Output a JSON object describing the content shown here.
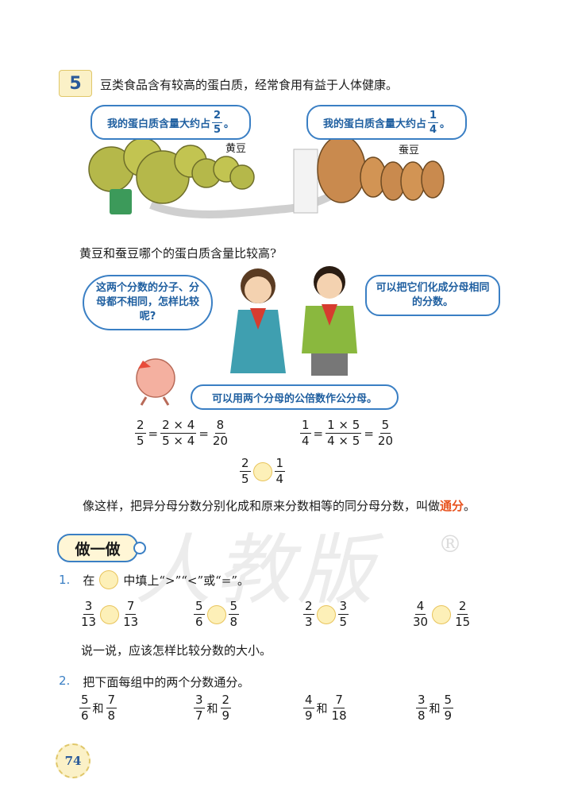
{
  "example": {
    "number": "5",
    "intro": "豆类食品含有较高的蛋白质，经常食用有益于人体健康。",
    "soy_bubble": {
      "text": "我的蛋白质含量大约占",
      "n": "2",
      "d": "5",
      "end": "。"
    },
    "broad_bubble": {
      "text": "我的蛋白质含量大约占",
      "n": "1",
      "d": "4",
      "end": "。"
    },
    "soy_label": "黄豆",
    "broad_label": "蚕豆",
    "question": "黄豆和蚕豆哪个的蛋白质含量比较高?",
    "girl_bubble": "这两个分数的分子、分母都不相同，怎样比较呢?",
    "boy_bubble": "可以把它们化成分母相同的分数。",
    "bean_bubble": "可以用两个分母的公倍数作公分母。",
    "eq1": {
      "a_n": "2",
      "a_d": "5",
      "b_n": "2 × 4",
      "b_d": "5 × 4",
      "c_n": "8",
      "c_d": "20"
    },
    "eq2": {
      "a_n": "1",
      "a_d": "4",
      "b_n": "1 × 5",
      "b_d": "4 × 5",
      "c_n": "5",
      "c_d": "20"
    },
    "cmp": {
      "a_n": "2",
      "a_d": "5",
      "b_n": "1",
      "b_d": "4"
    },
    "eq_sign": "=",
    "definition": "像这样，把异分母分数分别化成和原来分数相等的同分母分数，叫做",
    "keyword": "通分",
    "keyword_end": "。"
  },
  "practice": {
    "title": "做一做",
    "q1": {
      "num": "1.",
      "pre": "在",
      "post": "中填上“>”“<”或“=”。",
      "pairs": [
        {
          "a_n": "3",
          "a_d": "13",
          "b_n": "7",
          "b_d": "13"
        },
        {
          "a_n": "5",
          "a_d": "6",
          "b_n": "5",
          "b_d": "8"
        },
        {
          "a_n": "2",
          "a_d": "3",
          "b_n": "3",
          "b_d": "5"
        },
        {
          "a_n": "4",
          "a_d": "30",
          "b_n": "2",
          "b_d": "15"
        }
      ],
      "followup": "说一说，应该怎样比较分数的大小。"
    },
    "q2": {
      "num": "2.",
      "text": "把下面每组中的两个分数通分。",
      "conj": "和",
      "pairs": [
        {
          "a_n": "5",
          "a_d": "6",
          "b_n": "7",
          "b_d": "8"
        },
        {
          "a_n": "3",
          "a_d": "7",
          "b_n": "2",
          "b_d": "9"
        },
        {
          "a_n": "4",
          "a_d": "9",
          "b_n": "7",
          "b_d": "18"
        },
        {
          "a_n": "3",
          "a_d": "8",
          "b_n": "5",
          "b_d": "9"
        }
      ]
    }
  },
  "page_number": "74",
  "colors": {
    "accent": "#3a7fc4",
    "keyword": "#e8531f",
    "circle": "#fdf0b8",
    "soybean": "#b5b84a",
    "broadbean": "#c98a4e"
  }
}
